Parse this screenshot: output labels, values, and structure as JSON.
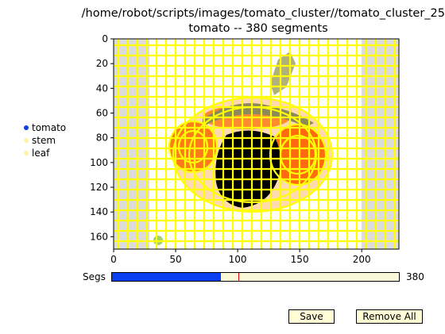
{
  "title_line1": "/home/robot/scripts/images/tomato_cluster//tomato_cluster_25",
  "title_line2": "tomato -- 380 segments",
  "legend": [
    {
      "label": "tomato",
      "color": "#1040e0"
    },
    {
      "label": "stem",
      "color": "#fff5a0"
    },
    {
      "label": "leaf",
      "color": "#fff5a0"
    }
  ],
  "slider": {
    "label": "Segs",
    "value": "380",
    "fill_fraction": 0.38,
    "initial_fraction": 0.44
  },
  "buttons": {
    "save": "Save",
    "remove_all": "Remove All"
  },
  "colors": {
    "boundary": "#ffff00",
    "tomato": "#ff6a10",
    "background": "#e6e6e6",
    "slider_fill": "#0a3cf0"
  },
  "chart_data": {
    "type": "image",
    "xticks": [
      "0",
      "50",
      "100",
      "150",
      "200"
    ],
    "yticks": [
      "0",
      "20",
      "40",
      "60",
      "80",
      "100",
      "120",
      "140",
      "160"
    ],
    "xlim": [
      0,
      230
    ],
    "ylim": [
      170,
      0
    ]
  }
}
